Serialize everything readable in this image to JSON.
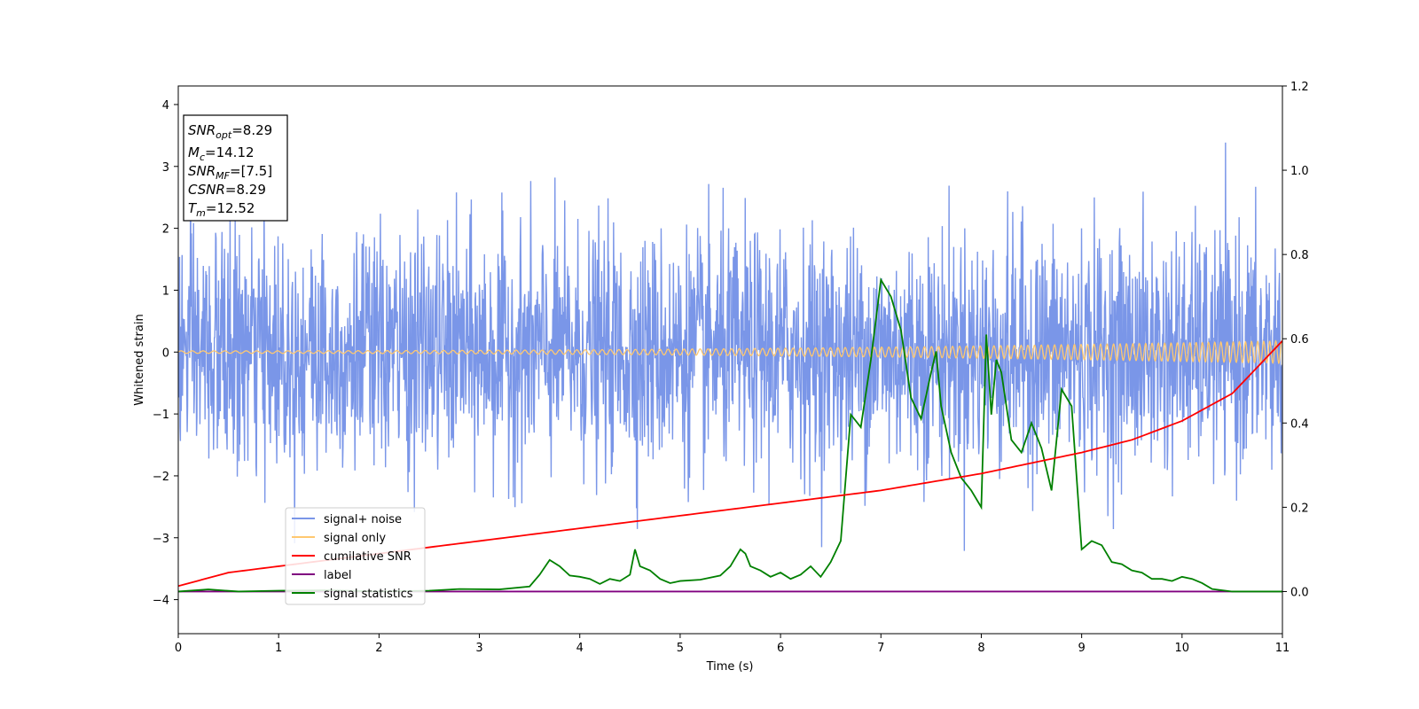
{
  "chart_data": {
    "type": "line",
    "xlabel": "Time (s)",
    "ylabel": "Whitened strain",
    "xlim": [
      0,
      11
    ],
    "ylim": [
      -4.55,
      4.3
    ],
    "y2lim": [
      -0.1,
      1.2
    ],
    "x_ticks": [
      "0",
      "1",
      "2",
      "3",
      "4",
      "5",
      "6",
      "7",
      "8",
      "9",
      "10",
      "11"
    ],
    "y_ticks": [
      "4",
      "3",
      "2",
      "1",
      "0",
      "−1",
      "−2",
      "−3",
      "−4"
    ],
    "y2_ticks": [
      "0.0",
      "0.2",
      "0.4",
      "0.6",
      "0.8",
      "1.0",
      "1.2"
    ],
    "grid": false,
    "legend_position": "lower-left",
    "info_box": {
      "lines": [
        {
          "sym": "SNR",
          "sub": "opt",
          "value": "=8.29"
        },
        {
          "sym": "M",
          "sub": "c",
          "value": "=14.12"
        },
        {
          "sym": "SNR",
          "sub": "MF",
          "value": "=[7.5]"
        },
        {
          "sym": "CSNR",
          "sub": "",
          "value": "=8.29"
        },
        {
          "sym": "T",
          "sub": "m",
          "value": "=12.52"
        }
      ]
    },
    "series": [
      {
        "name": "signal+ noise",
        "axis": "left",
        "color": "#7a96e8",
        "description_amplitude_std": 0.95,
        "mean": 0.0,
        "x_range": [
          0,
          11
        ]
      },
      {
        "name": "signal only",
        "axis": "left",
        "color": "#ffc870",
        "amplitude_start": 0.02,
        "amplitude_end": 0.18,
        "x_range": [
          0,
          11
        ]
      },
      {
        "name": "cumilative SNR",
        "axis": "right",
        "color": "#ff0000",
        "x": [
          0,
          0.5,
          1,
          2,
          3,
          4,
          5,
          6,
          7,
          8,
          9,
          9.5,
          10,
          10.5,
          11
        ],
        "values": [
          0.013,
          0.045,
          0.06,
          0.09,
          0.12,
          0.15,
          0.18,
          0.21,
          0.24,
          0.28,
          0.33,
          0.36,
          0.405,
          0.47,
          0.595
        ]
      },
      {
        "name": "label",
        "axis": "right",
        "color": "#800080",
        "x": [
          0,
          11
        ],
        "values": [
          0.0,
          0.0
        ]
      },
      {
        "name": "signal statistics",
        "axis": "right",
        "color": "#008000",
        "x": [
          0,
          0.3,
          0.6,
          1.0,
          1.5,
          2.0,
          2.5,
          2.8,
          3.2,
          3.5,
          3.6,
          3.7,
          3.8,
          3.9,
          4.0,
          4.1,
          4.2,
          4.3,
          4.4,
          4.5,
          4.55,
          4.6,
          4.7,
          4.8,
          4.9,
          5.0,
          5.2,
          5.4,
          5.5,
          5.6,
          5.65,
          5.7,
          5.8,
          5.9,
          6.0,
          6.1,
          6.2,
          6.3,
          6.4,
          6.5,
          6.6,
          6.7,
          6.8,
          6.9,
          7.0,
          7.1,
          7.2,
          7.3,
          7.4,
          7.5,
          7.55,
          7.6,
          7.7,
          7.8,
          7.9,
          8.0,
          8.05,
          8.1,
          8.15,
          8.2,
          8.3,
          8.4,
          8.5,
          8.6,
          8.7,
          8.8,
          8.9,
          9.0,
          9.1,
          9.2,
          9.3,
          9.4,
          9.5,
          9.6,
          9.7,
          9.8,
          9.9,
          10.0,
          10.1,
          10.2,
          10.3,
          10.5,
          11.0
        ],
        "values": [
          0.0,
          0.005,
          0.0,
          0.002,
          0.003,
          0.0,
          0.002,
          0.006,
          0.005,
          0.012,
          0.04,
          0.075,
          0.06,
          0.038,
          0.035,
          0.03,
          0.018,
          0.03,
          0.025,
          0.04,
          0.1,
          0.06,
          0.05,
          0.03,
          0.02,
          0.025,
          0.028,
          0.038,
          0.06,
          0.1,
          0.09,
          0.06,
          0.05,
          0.035,
          0.045,
          0.03,
          0.04,
          0.06,
          0.035,
          0.07,
          0.12,
          0.42,
          0.39,
          0.55,
          0.74,
          0.7,
          0.62,
          0.46,
          0.41,
          0.52,
          0.57,
          0.44,
          0.33,
          0.27,
          0.24,
          0.2,
          0.61,
          0.42,
          0.55,
          0.52,
          0.36,
          0.33,
          0.4,
          0.34,
          0.24,
          0.48,
          0.44,
          0.1,
          0.12,
          0.11,
          0.07,
          0.065,
          0.05,
          0.045,
          0.03,
          0.03,
          0.025,
          0.035,
          0.03,
          0.02,
          0.006,
          0.0,
          0.0
        ]
      }
    ]
  }
}
